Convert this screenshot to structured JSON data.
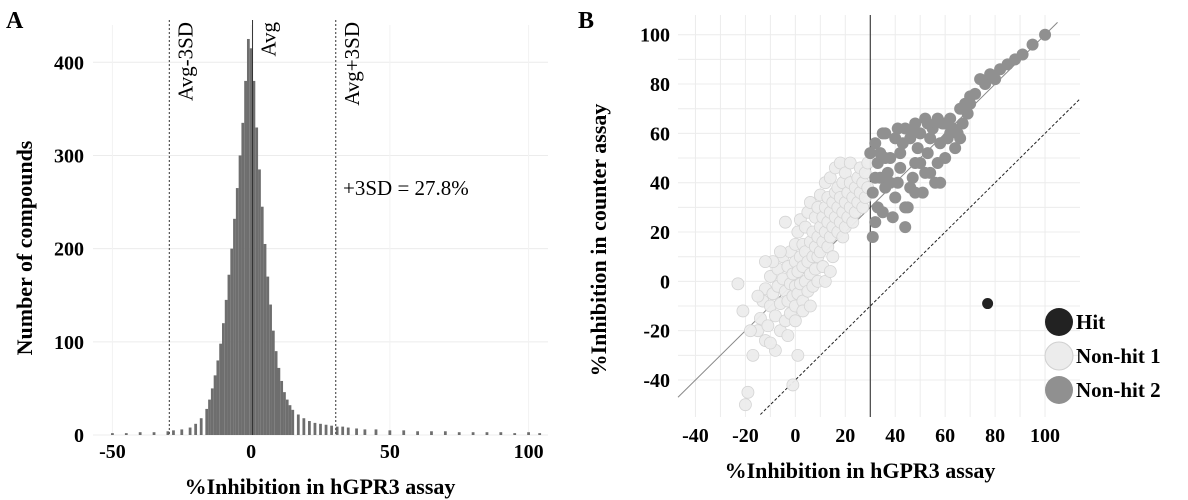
{
  "panels": {
    "a_label": "A",
    "b_label": "B"
  },
  "chart_data": [
    {
      "type": "bar",
      "panel": "A",
      "xlabel": "%Inhibition in hGPR3 assay",
      "ylabel": "Number of compounds",
      "xlim": [
        -57,
        107
      ],
      "ylim": [
        0,
        440
      ],
      "xticks": [
        -50,
        0,
        50,
        100
      ],
      "yticks": [
        0,
        100,
        200,
        300,
        400
      ],
      "bar_color": "#6e6e6e",
      "bin_width": 1,
      "bins": [
        {
          "x": -50,
          "count": 2
        },
        {
          "x": -45,
          "count": 2
        },
        {
          "x": -40,
          "count": 3
        },
        {
          "x": -35,
          "count": 3
        },
        {
          "x": -30,
          "count": 4
        },
        {
          "x": -28,
          "count": 5
        },
        {
          "x": -25,
          "count": 6
        },
        {
          "x": -22,
          "count": 8
        },
        {
          "x": -20,
          "count": 12
        },
        {
          "x": -18,
          "count": 18
        },
        {
          "x": -16,
          "count": 28
        },
        {
          "x": -15,
          "count": 38
        },
        {
          "x": -14,
          "count": 50
        },
        {
          "x": -13,
          "count": 64
        },
        {
          "x": -12,
          "count": 80
        },
        {
          "x": -11,
          "count": 98
        },
        {
          "x": -10,
          "count": 120
        },
        {
          "x": -9,
          "count": 145
        },
        {
          "x": -8,
          "count": 172
        },
        {
          "x": -7,
          "count": 200
        },
        {
          "x": -6,
          "count": 232
        },
        {
          "x": -5,
          "count": 265
        },
        {
          "x": -4,
          "count": 300
        },
        {
          "x": -3,
          "count": 335
        },
        {
          "x": -2,
          "count": 380
        },
        {
          "x": -1,
          "count": 425
        },
        {
          "x": 0,
          "count": 415
        },
        {
          "x": 1,
          "count": 380
        },
        {
          "x": 2,
          "count": 330
        },
        {
          "x": 3,
          "count": 285
        },
        {
          "x": 4,
          "count": 245
        },
        {
          "x": 5,
          "count": 205
        },
        {
          "x": 6,
          "count": 170
        },
        {
          "x": 7,
          "count": 140
        },
        {
          "x": 8,
          "count": 112
        },
        {
          "x": 9,
          "count": 90
        },
        {
          "x": 10,
          "count": 72
        },
        {
          "x": 11,
          "count": 58
        },
        {
          "x": 12,
          "count": 46
        },
        {
          "x": 13,
          "count": 38
        },
        {
          "x": 14,
          "count": 32
        },
        {
          "x": 15,
          "count": 27
        },
        {
          "x": 17,
          "count": 22
        },
        {
          "x": 19,
          "count": 18
        },
        {
          "x": 21,
          "count": 15
        },
        {
          "x": 23,
          "count": 13
        },
        {
          "x": 25,
          "count": 12
        },
        {
          "x": 27,
          "count": 11
        },
        {
          "x": 29,
          "count": 10
        },
        {
          "x": 31,
          "count": 9
        },
        {
          "x": 33,
          "count": 9
        },
        {
          "x": 35,
          "count": 8
        },
        {
          "x": 38,
          "count": 7
        },
        {
          "x": 41,
          "count": 6
        },
        {
          "x": 45,
          "count": 6
        },
        {
          "x": 50,
          "count": 5
        },
        {
          "x": 55,
          "count": 5
        },
        {
          "x": 60,
          "count": 4
        },
        {
          "x": 65,
          "count": 4
        },
        {
          "x": 70,
          "count": 4
        },
        {
          "x": 75,
          "count": 3
        },
        {
          "x": 80,
          "count": 3
        },
        {
          "x": 85,
          "count": 3
        },
        {
          "x": 90,
          "count": 3
        },
        {
          "x": 95,
          "count": 2
        },
        {
          "x": 100,
          "count": 3
        },
        {
          "x": 104,
          "count": 2
        }
      ],
      "reference_lines": [
        {
          "x": -29.5,
          "label": "Avg-3SD",
          "style": "dotted"
        },
        {
          "x": 0.5,
          "label": "Avg",
          "style": "solid"
        },
        {
          "x": 30.5,
          "label": "Avg+3SD",
          "style": "dotted"
        }
      ],
      "annotation": "+3SD = 27.8%"
    },
    {
      "type": "scatter",
      "panel": "B",
      "xlabel": "%Inhibition in hGPR3 assay",
      "ylabel": "%Inhibition in counter assay",
      "xlim": [
        -47,
        114
      ],
      "ylim": [
        -55,
        108
      ],
      "xticks": [
        -40,
        -20,
        0,
        20,
        40,
        60,
        80,
        100
      ],
      "yticks": [
        -40,
        -20,
        0,
        20,
        40,
        60,
        80,
        100
      ],
      "grid": true,
      "legend_position": "bottom-right",
      "diagonal_line": {
        "slope": 1,
        "intercept": 0,
        "style": "solid"
      },
      "offset_line": {
        "slope": 1,
        "intercept": -40,
        "style": "dashed"
      },
      "threshold_line_x": 30,
      "series": [
        {
          "name": "Hit",
          "color": "#222222",
          "points": [
            [
              77,
              -9
            ]
          ]
        },
        {
          "name": "Non-hit 1",
          "color": "#ececec",
          "points": [
            [
              -23,
              -1
            ],
            [
              -21,
              -12
            ],
            [
              -19,
              -45
            ],
            [
              -20,
              -50
            ],
            [
              -17,
              -30
            ],
            [
              -15,
              -20
            ],
            [
              -14,
              -15
            ],
            [
              -13,
              -8
            ],
            [
              -12,
              -3
            ],
            [
              -12,
              -24
            ],
            [
              -11,
              -18
            ],
            [
              -10,
              -10
            ],
            [
              -10,
              2
            ],
            [
              -9,
              -5
            ],
            [
              -8,
              -28
            ],
            [
              -8,
              -14
            ],
            [
              -7,
              -2
            ],
            [
              -7,
              5
            ],
            [
              -6,
              -9
            ],
            [
              -6,
              -20
            ],
            [
              -5,
              1
            ],
            [
              -5,
              10
            ],
            [
              -4,
              -4
            ],
            [
              -4,
              -16
            ],
            [
              -3,
              6
            ],
            [
              -3,
              -8
            ],
            [
              -2,
              12
            ],
            [
              -2,
              -1
            ],
            [
              -2,
              -13
            ],
            [
              -1,
              3
            ],
            [
              -1,
              -6
            ],
            [
              0,
              8
            ],
            [
              0,
              -2
            ],
            [
              0,
              15
            ],
            [
              0,
              -10
            ],
            [
              1,
              4
            ],
            [
              1,
              20
            ],
            [
              1,
              -5
            ],
            [
              2,
              10
            ],
            [
              2,
              -1
            ],
            [
              2,
              25
            ],
            [
              3,
              6
            ],
            [
              3,
              -8
            ],
            [
              3,
              15
            ],
            [
              4,
              0
            ],
            [
              4,
              22
            ],
            [
              4,
              12
            ],
            [
              5,
              8
            ],
            [
              5,
              -4
            ],
            [
              5,
              28
            ],
            [
              6,
              16
            ],
            [
              6,
              3
            ],
            [
              6,
              32
            ],
            [
              7,
              10
            ],
            [
              7,
              20
            ],
            [
              7,
              -2
            ],
            [
              8,
              14
            ],
            [
              8,
              26
            ],
            [
              8,
              5
            ],
            [
              9,
              18
            ],
            [
              9,
              30
            ],
            [
              9,
              10
            ],
            [
              10,
              22
            ],
            [
              10,
              12
            ],
            [
              10,
              35
            ],
            [
              11,
              16
            ],
            [
              11,
              26
            ],
            [
              11,
              6
            ],
            [
              12,
              20
            ],
            [
              12,
              30
            ],
            [
              12,
              40
            ],
            [
              13,
              14
            ],
            [
              13,
              24
            ],
            [
              13,
              34
            ],
            [
              14,
              18
            ],
            [
              14,
              28
            ],
            [
              14,
              42
            ],
            [
              15,
              22
            ],
            [
              15,
              10
            ],
            [
              15,
              32
            ],
            [
              16,
              26
            ],
            [
              16,
              36
            ],
            [
              16,
              46
            ],
            [
              17,
              20
            ],
            [
              17,
              30
            ],
            [
              17,
              38
            ],
            [
              18,
              24
            ],
            [
              18,
              34
            ],
            [
              18,
              48
            ],
            [
              19,
              28
            ],
            [
              19,
              40
            ],
            [
              19,
              18
            ],
            [
              20,
              32
            ],
            [
              20,
              44
            ],
            [
              20,
              22
            ],
            [
              21,
              36
            ],
            [
              21,
              26
            ],
            [
              22,
              30
            ],
            [
              22,
              40
            ],
            [
              22,
              48
            ],
            [
              23,
              34
            ],
            [
              23,
              24
            ],
            [
              24,
              38
            ],
            [
              24,
              28
            ],
            [
              25,
              42
            ],
            [
              25,
              32
            ],
            [
              26,
              36
            ],
            [
              26,
              46
            ],
            [
              27,
              40
            ],
            [
              27,
              30
            ],
            [
              28,
              44
            ],
            [
              28,
              34
            ],
            [
              29,
              38
            ],
            [
              29,
              48
            ],
            [
              -1,
              -42
            ],
            [
              1,
              -30
            ],
            [
              -4,
              24
            ],
            [
              -6,
              12
            ],
            [
              -9,
              8
            ],
            [
              -15,
              -6
            ],
            [
              -18,
              -20
            ],
            [
              -12,
              8
            ],
            [
              -10,
              -25
            ],
            [
              -3,
              -22
            ],
            [
              0,
              -16
            ],
            [
              3,
              -12
            ],
            [
              6,
              -10
            ],
            [
              9,
              0
            ],
            [
              12,
              0
            ],
            [
              14,
              4
            ]
          ]
        },
        {
          "name": "Non-hit 2",
          "color": "#909090",
          "points": [
            [
              31,
              18
            ],
            [
              32,
              24
            ],
            [
              33,
              30
            ],
            [
              31,
              36
            ],
            [
              32,
              42
            ],
            [
              33,
              48
            ],
            [
              34,
              52
            ],
            [
              35,
              28
            ],
            [
              36,
              38
            ],
            [
              37,
              44
            ],
            [
              38,
              50
            ],
            [
              39,
              26
            ],
            [
              40,
              34
            ],
            [
              41,
              40
            ],
            [
              42,
              46
            ],
            [
              43,
              56
            ],
            [
              44,
              22
            ],
            [
              45,
              30
            ],
            [
              46,
              38
            ],
            [
              47,
              42
            ],
            [
              48,
              48
            ],
            [
              49,
              54
            ],
            [
              50,
              60
            ],
            [
              51,
              36
            ],
            [
              52,
              44
            ],
            [
              53,
              52
            ],
            [
              54,
              58
            ],
            [
              55,
              62
            ],
            [
              56,
              40
            ],
            [
              57,
              48
            ],
            [
              58,
              56
            ],
            [
              59,
              64
            ],
            [
              60,
              50
            ],
            [
              61,
              58
            ],
            [
              62,
              66
            ],
            [
              63,
              62
            ],
            [
              64,
              54
            ],
            [
              65,
              60
            ],
            [
              66,
              70
            ],
            [
              67,
              64
            ],
            [
              68,
              72
            ],
            [
              69,
              68
            ],
            [
              70,
              75
            ],
            [
              72,
              76
            ],
            [
              74,
              82
            ],
            [
              76,
              80
            ],
            [
              78,
              84
            ],
            [
              80,
              82
            ],
            [
              82,
              86
            ],
            [
              85,
              88
            ],
            [
              88,
              90
            ],
            [
              91,
              92
            ],
            [
              95,
              96
            ],
            [
              100,
              100
            ],
            [
              36,
              60
            ],
            [
              40,
              58
            ],
            [
              44,
              62
            ],
            [
              48,
              64
            ],
            [
              52,
              66
            ],
            [
              42,
              52
            ],
            [
              46,
              58
            ],
            [
              50,
              48
            ],
            [
              54,
              44
            ],
            [
              38,
              40
            ],
            [
              34,
              42
            ],
            [
              30,
              52
            ],
            [
              32,
              56
            ],
            [
              36,
              50
            ],
            [
              58,
              40
            ],
            [
              62,
              60
            ],
            [
              66,
              58
            ],
            [
              70,
              72
            ],
            [
              35,
              60
            ],
            [
              41,
              62
            ],
            [
              47,
              60
            ],
            [
              53,
              64
            ],
            [
              57,
              66
            ],
            [
              60,
              64
            ],
            [
              48,
              36
            ],
            [
              44,
              30
            ]
          ]
        }
      ]
    }
  ]
}
